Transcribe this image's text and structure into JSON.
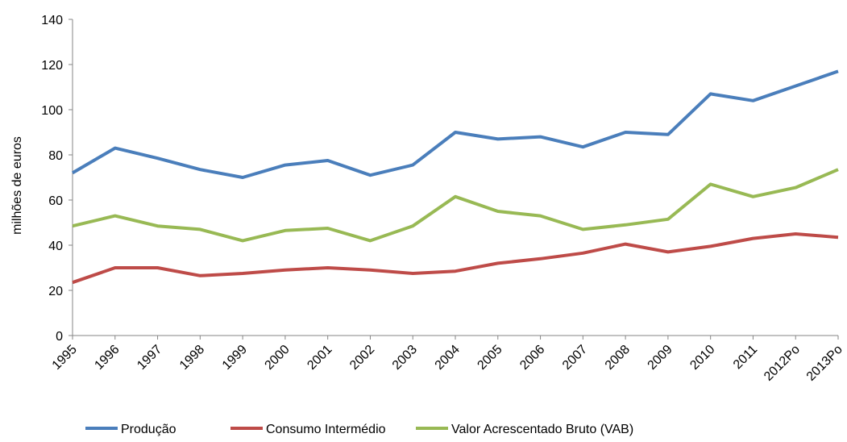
{
  "chart_data": {
    "type": "line",
    "y_label": "milhões de euros",
    "categories": [
      "1995",
      "1996",
      "1997",
      "1998",
      "1999",
      "2000",
      "2001",
      "2002",
      "2003",
      "2004",
      "2005",
      "2006",
      "2007",
      "2008",
      "2009",
      "2010",
      "2011",
      "2012Po",
      "2013Po"
    ],
    "series": [
      {
        "name": "Produção",
        "color": "#4a7ebb",
        "values": [
          72,
          83,
          78.5,
          73.5,
          70,
          75.5,
          77.5,
          71,
          75.5,
          90,
          87,
          88,
          83.5,
          90,
          89,
          107,
          104,
          110.5,
          117
        ]
      },
      {
        "name": "Consumo Intermédio",
        "color": "#be4b48",
        "values": [
          23.5,
          30,
          30,
          26.5,
          27.5,
          29,
          30,
          29,
          27.5,
          28.5,
          32,
          34,
          36.5,
          40.5,
          37,
          39.5,
          43,
          45,
          43.5
        ]
      },
      {
        "name": "Valor Acrescentado Bruto (VAB)",
        "color": "#98b954",
        "values": [
          48.5,
          53,
          48.5,
          47,
          42,
          46.5,
          47.5,
          42,
          48.5,
          61.5,
          55,
          53,
          47,
          49,
          51.5,
          67,
          61.5,
          65.5,
          73.5
        ]
      }
    ],
    "ylim": [
      0,
      140
    ],
    "yticks": [
      0,
      20,
      40,
      60,
      80,
      100,
      120,
      140
    ],
    "grid": false,
    "legend": "bottom"
  }
}
